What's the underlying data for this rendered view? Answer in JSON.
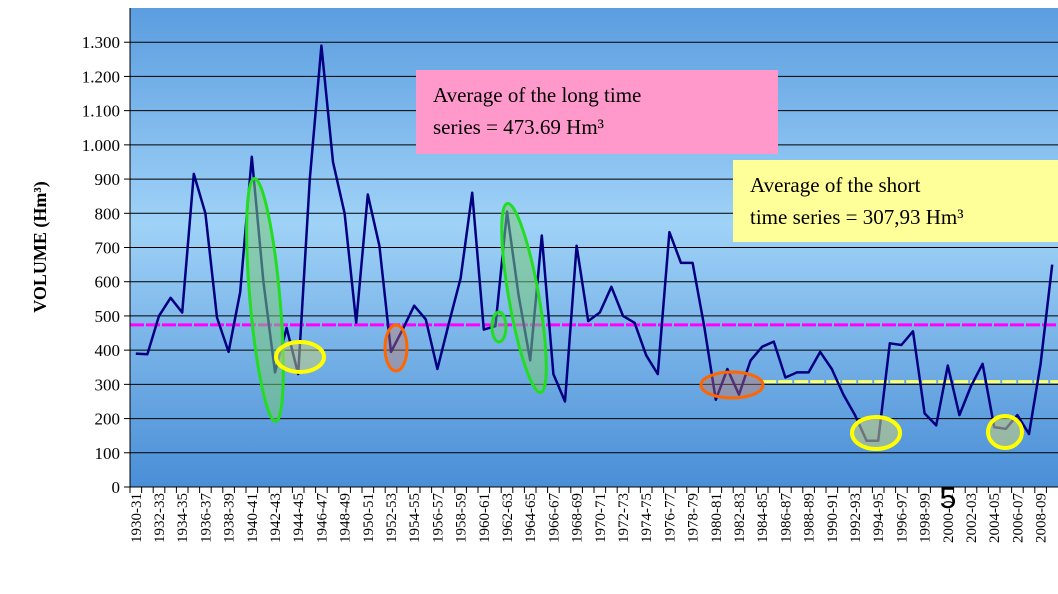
{
  "chart_data": {
    "type": "line",
    "y_label": "VOLUME (Hm³)",
    "categories": [
      "1930-31",
      null,
      "1932-33",
      null,
      "1934-35",
      null,
      "1936-37",
      null,
      "1938-39",
      null,
      "1940-41",
      null,
      "1942-43",
      null,
      "1944-45",
      null,
      "1946-47",
      null,
      "1948-49",
      null,
      "1950-51",
      null,
      "1952-53",
      null,
      "1954-55",
      null,
      "1956-57",
      null,
      "1958-59",
      null,
      "1960-61",
      null,
      "1962-63",
      null,
      "1964-65",
      null,
      "1966-67",
      null,
      "1968-69",
      null,
      "1970-71",
      null,
      "1972-73",
      null,
      "1974-75",
      null,
      "1976-77",
      null,
      "1978-79",
      null,
      "1980-81",
      null,
      "1982-83",
      null,
      "1984-85",
      null,
      "1986-87",
      null,
      "1988-89",
      null,
      "1990-91",
      null,
      "1992-93",
      null,
      "1994-95",
      null,
      "1996-97",
      null,
      "1998-99",
      null,
      "2000-01",
      null,
      "2002-03",
      null,
      "2004-05",
      null,
      "2006-07",
      null,
      "2008-09",
      null
    ],
    "series": [
      {
        "name": "Volume",
        "color": "#000080",
        "values": [
          390,
          388,
          500,
          553,
          510,
          915,
          800,
          495,
          395,
          570,
          965,
          600,
          335,
          465,
          330,
          900,
          1290,
          950,
          800,
          480,
          855,
          705,
          395,
          460,
          530,
          490,
          345,
          480,
          610,
          860,
          460,
          470,
          805,
          560,
          370,
          735,
          330,
          250,
          705,
          485,
          510,
          585,
          500,
          480,
          385,
          330,
          745,
          655,
          655,
          470,
          255,
          345,
          270,
          370,
          410,
          425,
          320,
          335,
          335,
          395,
          345,
          270,
          210,
          135,
          135,
          420,
          415,
          455,
          215,
          180,
          355,
          210,
          295,
          360,
          175,
          170,
          210,
          155,
          360,
          650
        ]
      }
    ],
    "reference_lines": [
      {
        "value": 473.69,
        "color": "#ff00ff",
        "box_color": "#ff99cc",
        "text": [
          "Average of the long time",
          "series = 473.69 Hm³"
        ]
      },
      {
        "value": 307.93,
        "color": "#ffff66",
        "box_color": "#ffff99",
        "from": "1984-85",
        "text": [
          "Average of the short",
          "time series = 307,93 Hm³"
        ]
      }
    ],
    "ylim": [
      0,
      1400
    ],
    "yticks": [
      0,
      100,
      200,
      300,
      400,
      500,
      600,
      700,
      800,
      900,
      {
        "value": 1000,
        "label": "1.000"
      },
      {
        "value": 1100,
        "label": "1.100"
      },
      {
        "value": 1200,
        "label": "1.200"
      },
      {
        "value": 1300,
        "label": "1.300"
      }
    ],
    "grid": true,
    "slide_number": "5"
  }
}
